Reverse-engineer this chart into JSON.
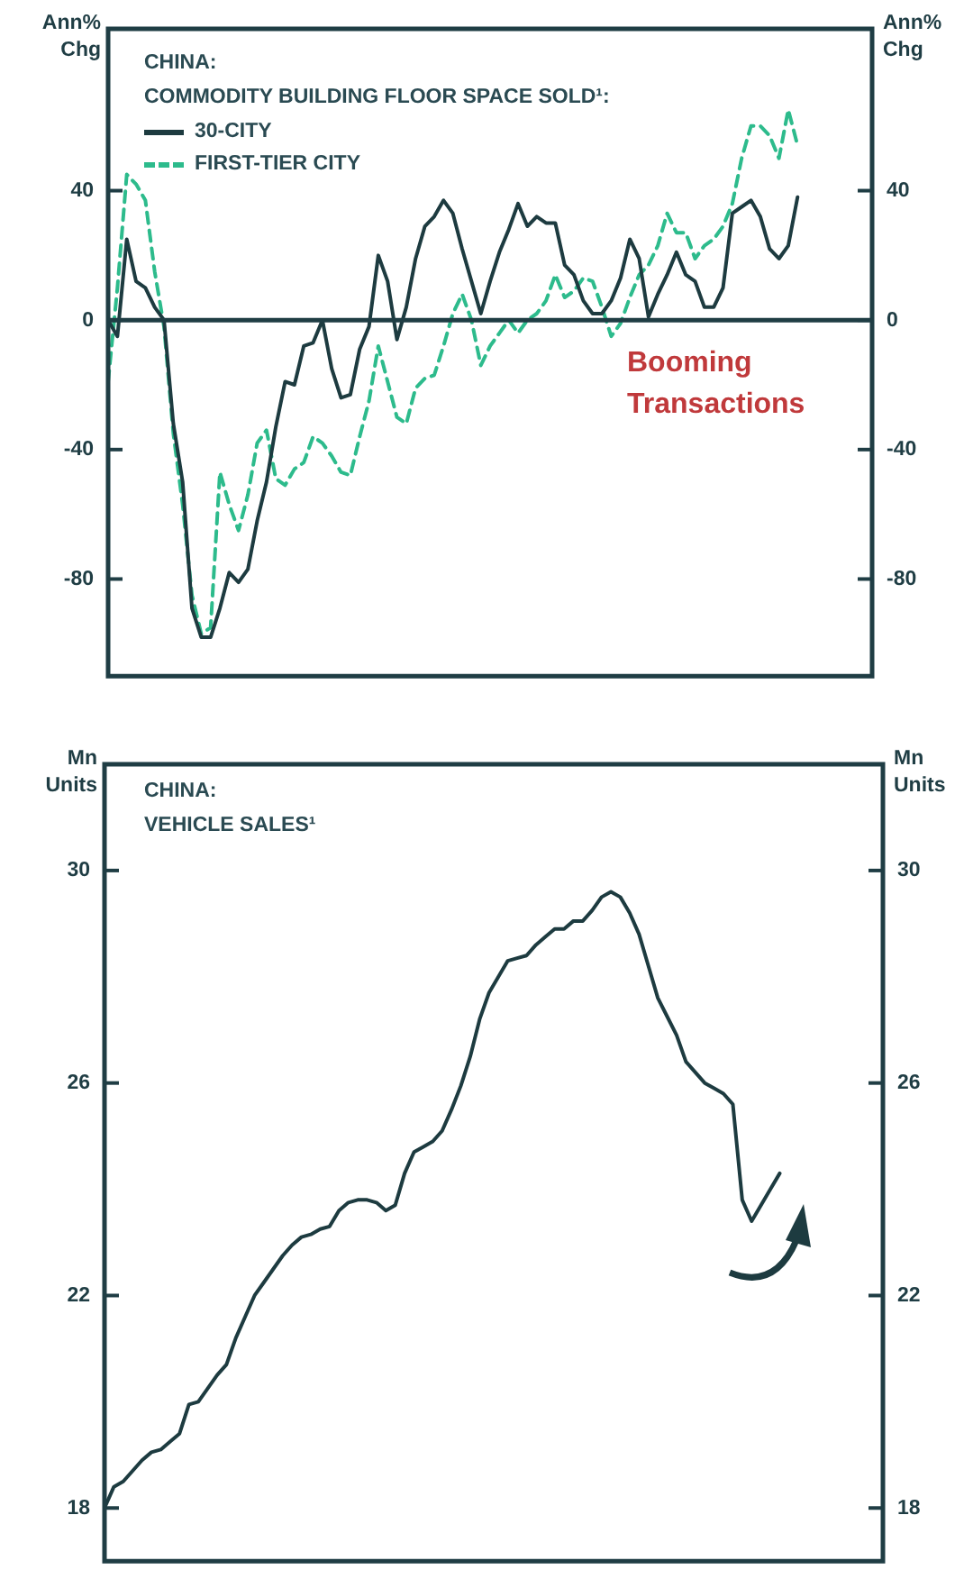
{
  "chart_data": [
    {
      "type": "line",
      "title": "CHINA:",
      "subtitle": "COMMODITY BUILDING FLOOR SPACE SOLD¹:",
      "ylabel": "Ann% Chg",
      "y2label": "Ann% Chg",
      "categories": [
        null,
        null,
        null,
        null,
        null,
        null,
        null,
        null,
        null,
        null,
        null,
        null,
        null,
        null,
        null,
        null,
        null,
        null,
        null,
        null,
        null,
        null,
        null,
        null,
        null,
        null,
        null,
        null,
        null,
        null,
        null,
        null,
        null,
        null,
        null,
        null,
        null,
        null,
        null,
        null,
        null,
        null,
        null,
        null,
        null,
        null,
        null,
        null,
        null,
        null,
        null,
        null,
        null,
        null,
        null,
        null,
        null,
        null,
        null,
        null,
        null,
        null,
        null,
        null,
        null,
        null,
        null,
        null,
        null,
        null,
        null,
        null,
        null,
        null,
        null,
        null,
        null,
        null,
        null,
        null,
        null,
        null,
        null
      ],
      "series": [
        {
          "name": "30-CITY",
          "color": "#1d3b40",
          "line_style": "solid",
          "values": [
            0,
            -5,
            25,
            12,
            10,
            4,
            0,
            -32,
            -50,
            -89,
            -98,
            -98,
            -89,
            -78,
            -81,
            -77,
            -62,
            -50,
            -33,
            -19,
            -20,
            -8,
            -7,
            0,
            -15,
            -24,
            -23,
            -9,
            -2,
            20,
            12,
            -6,
            4,
            19,
            29,
            32,
            37,
            33,
            22,
            12,
            2,
            12,
            21,
            28,
            36,
            29,
            32,
            30,
            30,
            17,
            14,
            6,
            2,
            2,
            6,
            13,
            25,
            19,
            1,
            8,
            14,
            21,
            14,
            12,
            4,
            4,
            10,
            33,
            35,
            37,
            32,
            22,
            19,
            23,
            38,
            null,
            null,
            null,
            null,
            null,
            null,
            null,
            null
          ]
        },
        {
          "name": "FIRST-TIER CITY",
          "color": "#2dbb8c",
          "line_style": "dashed",
          "values": [
            -19,
            10,
            45,
            42,
            37,
            15,
            -2,
            -35,
            -57,
            -85,
            -97,
            -95,
            -47,
            -57,
            -65,
            -54,
            -38,
            -34,
            -49,
            -51,
            -46,
            -44,
            -36,
            -38,
            -42,
            -47,
            -48,
            -36,
            -25,
            -8,
            -19,
            -30,
            -32,
            -21,
            -18,
            -17,
            -8,
            2,
            8,
            0,
            -14,
            -8,
            -4,
            0,
            -4,
            0,
            2,
            6,
            14,
            7,
            9,
            13,
            12,
            4,
            -5,
            -1,
            7,
            14,
            17,
            23,
            33,
            27,
            27,
            19,
            23,
            25,
            29,
            36,
            50,
            60,
            60,
            57,
            50,
            65,
            54,
            null,
            null,
            null,
            null,
            null,
            null,
            null,
            null
          ]
        }
      ],
      "ylim": [
        -110,
        90
      ],
      "yticks": [
        -80,
        -40,
        0,
        40
      ],
      "y2lim": [
        -110,
        90
      ],
      "y2ticks": [
        -80,
        -40,
        0,
        40
      ],
      "ref_lines": [
        {
          "axis": "y",
          "value": 0
        }
      ],
      "annotations": [
        "Booming Transactions"
      ],
      "legend": "top left",
      "grid": false,
      "tick_labels": "y"
    },
    {
      "type": "line",
      "title": "CHINA:",
      "subtitle": "VEHICLE SALES¹",
      "ylabel": "Mn Units",
      "y2label": "Mn Units",
      "categories": [
        null,
        null,
        null,
        null,
        null,
        null,
        null,
        null,
        null,
        null,
        null,
        null,
        null,
        null,
        null,
        null,
        null,
        null,
        null,
        null,
        null,
        null,
        null,
        null,
        null,
        null,
        null,
        null,
        null,
        null,
        null,
        null,
        null,
        null,
        null,
        null,
        null,
        null,
        null,
        null,
        null,
        null,
        null,
        null,
        null,
        null,
        null,
        null,
        null,
        null,
        null,
        null,
        null,
        null,
        null,
        null,
        null,
        null,
        null,
        null,
        null,
        null,
        null,
        null,
        null,
        null,
        null,
        null,
        null,
        null,
        null,
        null,
        null,
        null,
        null,
        null,
        null,
        null,
        null,
        null,
        null,
        null,
        null,
        null
      ],
      "series": [
        {
          "color": "#1d3b40",
          "values": [
            18.0,
            18.4,
            18.5,
            18.7,
            18.9,
            19.05,
            19.1,
            19.25,
            19.4,
            19.95,
            20.0,
            20.25,
            20.5,
            20.7,
            21.2,
            21.6,
            22.0,
            22.25,
            22.5,
            22.75,
            22.95,
            23.1,
            23.15,
            23.25,
            23.3,
            23.6,
            23.75,
            23.8,
            23.8,
            23.75,
            23.6,
            23.7,
            24.3,
            24.7,
            24.8,
            24.9,
            25.1,
            25.5,
            25.95,
            26.5,
            27.2,
            27.7,
            28.0,
            28.3,
            28.35,
            28.4,
            28.6,
            28.75,
            28.9,
            28.9,
            29.05,
            29.05,
            29.25,
            29.5,
            29.6,
            29.5,
            29.2,
            28.8,
            28.2,
            27.6,
            27.25,
            26.9,
            26.4,
            26.2,
            26.0,
            25.9,
            25.8,
            25.6,
            23.8,
            23.4,
            23.7,
            24.0,
            24.3,
            null,
            null,
            null,
            null,
            null,
            null,
            null,
            null,
            null,
            null,
            null
          ]
        }
      ],
      "ylim": [
        17,
        32
      ],
      "yticks": [
        18,
        22,
        26,
        30
      ],
      "y2lim": [
        17,
        32
      ],
      "y2ticks": [
        18,
        22,
        26,
        30
      ],
      "legend": false,
      "grid": false,
      "tick_labels": "y"
    }
  ]
}
